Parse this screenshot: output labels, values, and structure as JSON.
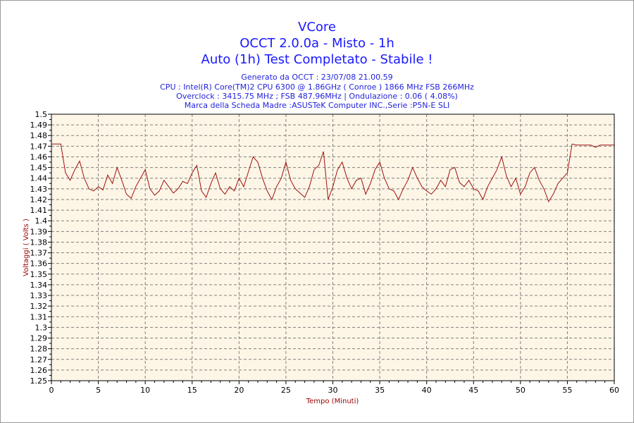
{
  "titles": {
    "line1": "VCore",
    "line2": "OCCT 2.0.0a - Misto - 1h",
    "line3": "Auto (1h) Test Completato - Stabile !"
  },
  "info": {
    "generated": "Generato da OCCT : 23/07/08 21.00.59",
    "cpu": "CPU : Intel(R) Core(TM)2 CPU 6300 @ 1.86GHz ( Conroe ) 1866 MHz FSB 266MHz",
    "overclock": "Overclock : 3415.75 MHz ; FSB 487.96MHz | Ondulazione : 0.06 ( 4.08%)",
    "board": "Marca della Scheda Madre :ASUSTeK Computer INC.,Serie :P5N-E SLI"
  },
  "colors": {
    "line": "#a01010",
    "plot_bg": "#fdf6e6",
    "title": "#1a1aff",
    "axis_label": "#990000"
  },
  "chart_data": {
    "type": "line",
    "xlabel": "Tempo (Minuti)",
    "ylabel": "Voltaggi ( Volts )",
    "xlim": [
      0,
      60
    ],
    "ylim": [
      1.25,
      1.5
    ],
    "xticks": [
      0,
      5,
      10,
      15,
      20,
      25,
      30,
      35,
      40,
      45,
      50,
      55,
      60
    ],
    "yticks": [
      1.25,
      1.26,
      1.27,
      1.28,
      1.29,
      1.3,
      1.31,
      1.32,
      1.33,
      1.34,
      1.35,
      1.36,
      1.37,
      1.38,
      1.39,
      1.4,
      1.41,
      1.42,
      1.43,
      1.44,
      1.45,
      1.46,
      1.47,
      1.48,
      1.49,
      1.5
    ],
    "grid": true,
    "series": [
      {
        "name": "VCore",
        "x_step": 0.5,
        "values": [
          1.472,
          1.472,
          1.472,
          1.445,
          1.438,
          1.448,
          1.456,
          1.44,
          1.43,
          1.428,
          1.432,
          1.429,
          1.443,
          1.435,
          1.45,
          1.438,
          1.425,
          1.421,
          1.432,
          1.44,
          1.448,
          1.43,
          1.424,
          1.428,
          1.438,
          1.432,
          1.426,
          1.43,
          1.437,
          1.435,
          1.445,
          1.452,
          1.428,
          1.422,
          1.435,
          1.445,
          1.43,
          1.425,
          1.432,
          1.428,
          1.44,
          1.432,
          1.446,
          1.46,
          1.455,
          1.44,
          1.428,
          1.42,
          1.432,
          1.44,
          1.455,
          1.438,
          1.43,
          1.426,
          1.422,
          1.432,
          1.448,
          1.452,
          1.465,
          1.42,
          1.432,
          1.448,
          1.455,
          1.44,
          1.43,
          1.438,
          1.44,
          1.425,
          1.435,
          1.448,
          1.455,
          1.44,
          1.43,
          1.428,
          1.42,
          1.43,
          1.438,
          1.45,
          1.44,
          1.432,
          1.428,
          1.425,
          1.43,
          1.438,
          1.432,
          1.448,
          1.45,
          1.436,
          1.432,
          1.438,
          1.43,
          1.428,
          1.42,
          1.432,
          1.44,
          1.448,
          1.46,
          1.442,
          1.432,
          1.44,
          1.425,
          1.432,
          1.445,
          1.45,
          1.438,
          1.43,
          1.418,
          1.425,
          1.435,
          1.44,
          1.445,
          1.472,
          1.471,
          1.471,
          1.471,
          1.471,
          1.469,
          1.471,
          1.471,
          1.471,
          1.471
        ]
      }
    ]
  }
}
